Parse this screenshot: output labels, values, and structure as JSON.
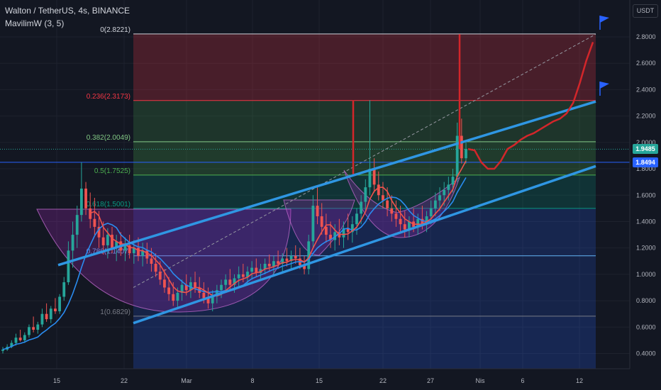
{
  "header": {
    "symbol": "Walton / TetherUS, 4s, BINANCE",
    "indicator": "MavilimW (3, 5)"
  },
  "currency": "USDT",
  "price_labels": {
    "current": "1.9485",
    "horizontal_line": "1.8494"
  },
  "colors": {
    "background": "#131722",
    "channel": "#2f96e3",
    "projection": "#d3262a",
    "ma_blue": "#2a8cf0",
    "ma_red": "#f0534c",
    "current_price_badge": "#26a69a",
    "line_badge": "#2962ff"
  },
  "chart_data": {
    "type": "candlestick",
    "y_axis": {
      "range": [
        0.3,
        3.0
      ],
      "ticks": [
        "0.4000",
        "0.6000",
        "0.8000",
        "1.0000",
        "1.2000",
        "1.4000",
        "1.6000",
        "1.8000",
        "2.0000",
        "2.2000",
        "2.4000",
        "2.6000",
        "2.8000"
      ]
    },
    "x_axis": {
      "ticks": [
        "15",
        "22",
        "Mar",
        "8",
        "15",
        "22",
        "27",
        "Nis",
        "6",
        "12"
      ]
    },
    "fibonacci": [
      {
        "label": "0(2.8221)",
        "value": 2.8221,
        "color": "#d1d4dc"
      },
      {
        "label": "0.236(2.3173)",
        "value": 2.3173,
        "color": "#f23645"
      },
      {
        "label": "0.382(2.0049)",
        "value": 2.0049,
        "color": "#81c784"
      },
      {
        "label": "0.5(1.7525)",
        "value": 1.7525,
        "color": "#4caf50"
      },
      {
        "label": "0.618(1.5001)",
        "value": 1.5001,
        "color": "#089981"
      },
      {
        "label": "0.786(1.1407)",
        "value": 1.1407,
        "color": "#64b5f6"
      },
      {
        "label": "1(0.6829)",
        "value": 0.6829,
        "color": "#787b86"
      }
    ],
    "channel_upper": {
      "start": 1.07,
      "end": 2.31
    },
    "channel_lower": {
      "start": 0.63,
      "end": 1.82
    },
    "current_price": 1.9485,
    "horizontal_line": 1.8494,
    "ohlc": [
      [
        0.42,
        0.45,
        0.4,
        0.43
      ],
      [
        0.43,
        0.47,
        0.42,
        0.45
      ],
      [
        0.45,
        0.5,
        0.44,
        0.48
      ],
      [
        0.48,
        0.55,
        0.46,
        0.52
      ],
      [
        0.52,
        0.58,
        0.49,
        0.5
      ],
      [
        0.5,
        0.56,
        0.48,
        0.54
      ],
      [
        0.54,
        0.62,
        0.52,
        0.6
      ],
      [
        0.6,
        0.68,
        0.56,
        0.58
      ],
      [
        0.58,
        0.64,
        0.55,
        0.62
      ],
      [
        0.62,
        0.74,
        0.6,
        0.7
      ],
      [
        0.7,
        0.78,
        0.64,
        0.66
      ],
      [
        0.66,
        0.76,
        0.63,
        0.74
      ],
      [
        0.74,
        0.82,
        0.7,
        0.72
      ],
      [
        0.72,
        0.85,
        0.7,
        0.83
      ],
      [
        0.83,
        0.98,
        0.8,
        0.94
      ],
      [
        0.94,
        1.25,
        0.92,
        1.18
      ],
      [
        1.18,
        1.4,
        1.05,
        1.3
      ],
      [
        1.3,
        1.52,
        1.2,
        1.45
      ],
      [
        1.45,
        1.85,
        1.4,
        1.65
      ],
      [
        1.65,
        1.7,
        1.45,
        1.5
      ],
      [
        1.5,
        1.62,
        1.35,
        1.42
      ],
      [
        1.42,
        1.58,
        1.3,
        1.36
      ],
      [
        1.36,
        1.48,
        1.2,
        1.28
      ],
      [
        1.28,
        1.4,
        1.15,
        1.22
      ],
      [
        1.22,
        1.35,
        1.12,
        1.3
      ],
      [
        1.3,
        1.36,
        1.16,
        1.2
      ],
      [
        1.2,
        1.3,
        1.1,
        1.25
      ],
      [
        1.25,
        1.32,
        1.14,
        1.18
      ],
      [
        1.18,
        1.28,
        1.1,
        1.22
      ],
      [
        1.22,
        1.3,
        1.12,
        1.16
      ],
      [
        1.16,
        1.26,
        1.08,
        1.2
      ],
      [
        1.2,
        1.28,
        1.1,
        1.14
      ],
      [
        1.14,
        1.24,
        1.06,
        1.18
      ],
      [
        1.18,
        1.24,
        1.08,
        1.12
      ],
      [
        1.12,
        1.2,
        1.02,
        1.08
      ],
      [
        1.08,
        1.16,
        0.98,
        1.02
      ],
      [
        1.02,
        1.1,
        0.92,
        0.96
      ],
      [
        0.96,
        1.04,
        0.86,
        0.9
      ],
      [
        0.9,
        0.98,
        0.8,
        0.85
      ],
      [
        0.85,
        0.94,
        0.76,
        0.8
      ],
      [
        0.8,
        0.9,
        0.74,
        0.86
      ],
      [
        0.86,
        0.96,
        0.8,
        0.92
      ],
      [
        0.92,
        1.0,
        0.84,
        0.88
      ],
      [
        0.88,
        0.98,
        0.82,
        0.94
      ],
      [
        0.94,
        1.02,
        0.86,
        0.9
      ],
      [
        0.9,
        0.98,
        0.82,
        0.86
      ],
      [
        0.86,
        0.94,
        0.78,
        0.82
      ],
      [
        0.82,
        0.9,
        0.74,
        0.78
      ],
      [
        0.78,
        0.88,
        0.72,
        0.84
      ],
      [
        0.84,
        0.92,
        0.78,
        0.88
      ],
      [
        0.88,
        0.96,
        0.82,
        0.92
      ],
      [
        0.92,
        1.0,
        0.86,
        0.96
      ],
      [
        0.96,
        1.04,
        0.88,
        0.92
      ],
      [
        0.92,
        1.0,
        0.86,
        0.97
      ],
      [
        0.97,
        1.06,
        0.9,
        1.0
      ],
      [
        1.0,
        1.08,
        0.94,
        0.98
      ],
      [
        0.98,
        1.06,
        0.92,
        1.02
      ],
      [
        1.02,
        1.1,
        0.96,
        1.05
      ],
      [
        1.05,
        1.12,
        0.98,
        1.01
      ],
      [
        1.01,
        1.08,
        0.95,
        1.04
      ],
      [
        1.04,
        1.12,
        1.0,
        1.08
      ],
      [
        1.08,
        1.15,
        1.02,
        1.06
      ],
      [
        1.06,
        1.14,
        1.0,
        1.1
      ],
      [
        1.1,
        1.18,
        1.04,
        1.08
      ],
      [
        1.08,
        1.16,
        1.02,
        1.12
      ],
      [
        1.12,
        1.2,
        1.06,
        1.1
      ],
      [
        1.1,
        1.18,
        1.04,
        1.14
      ],
      [
        1.14,
        1.22,
        1.08,
        1.12
      ],
      [
        1.12,
        1.2,
        1.04,
        1.07
      ],
      [
        1.07,
        1.14,
        1.0,
        1.04
      ],
      [
        1.04,
        1.3,
        1.0,
        1.25
      ],
      [
        1.25,
        1.6,
        1.2,
        1.52
      ],
      [
        1.52,
        1.66,
        1.38,
        1.44
      ],
      [
        1.44,
        1.54,
        1.3,
        1.36
      ],
      [
        1.36,
        1.46,
        1.24,
        1.3
      ],
      [
        1.3,
        1.4,
        1.2,
        1.26
      ],
      [
        1.26,
        1.38,
        1.18,
        1.32
      ],
      [
        1.32,
        1.42,
        1.22,
        1.28
      ],
      [
        1.28,
        1.4,
        1.2,
        1.35
      ],
      [
        1.35,
        1.46,
        1.26,
        1.32
      ],
      [
        1.32,
        1.44,
        1.24,
        1.38
      ],
      [
        1.38,
        1.5,
        1.3,
        1.46
      ],
      [
        1.46,
        1.6,
        1.38,
        1.55
      ],
      [
        1.55,
        1.72,
        1.48,
        1.66
      ],
      [
        1.66,
        2.32,
        1.6,
        1.8
      ],
      [
        1.8,
        1.88,
        1.62,
        1.68
      ],
      [
        1.68,
        1.78,
        1.56,
        1.6
      ],
      [
        1.6,
        1.7,
        1.5,
        1.56
      ],
      [
        1.56,
        1.66,
        1.44,
        1.5
      ],
      [
        1.5,
        1.6,
        1.4,
        1.46
      ],
      [
        1.46,
        1.56,
        1.36,
        1.42
      ],
      [
        1.42,
        1.52,
        1.32,
        1.38
      ],
      [
        1.38,
        1.48,
        1.28,
        1.34
      ],
      [
        1.34,
        1.44,
        1.28,
        1.4
      ],
      [
        1.4,
        1.5,
        1.32,
        1.36
      ],
      [
        1.36,
        1.46,
        1.3,
        1.42
      ],
      [
        1.42,
        1.52,
        1.34,
        1.38
      ],
      [
        1.38,
        1.48,
        1.32,
        1.44
      ],
      [
        1.44,
        1.56,
        1.38,
        1.5
      ],
      [
        1.5,
        1.62,
        1.44,
        1.56
      ],
      [
        1.56,
        1.66,
        1.48,
        1.6
      ],
      [
        1.6,
        1.7,
        1.52,
        1.64
      ],
      [
        1.64,
        1.74,
        1.56,
        1.68
      ],
      [
        1.68,
        1.8,
        1.62,
        1.74
      ],
      [
        1.74,
        2.15,
        1.7,
        2.05
      ],
      [
        2.05,
        2.18,
        1.84,
        1.88
      ],
      [
        1.88,
        2.0,
        1.84,
        1.95
      ]
    ],
    "projection": [
      1.95,
      1.94,
      1.85,
      1.8,
      1.8,
      1.86,
      1.95,
      1.98,
      2.02,
      2.05,
      2.07,
      2.1,
      2.13,
      2.16,
      2.18,
      2.22,
      2.3,
      2.45,
      2.62,
      2.76
    ]
  }
}
